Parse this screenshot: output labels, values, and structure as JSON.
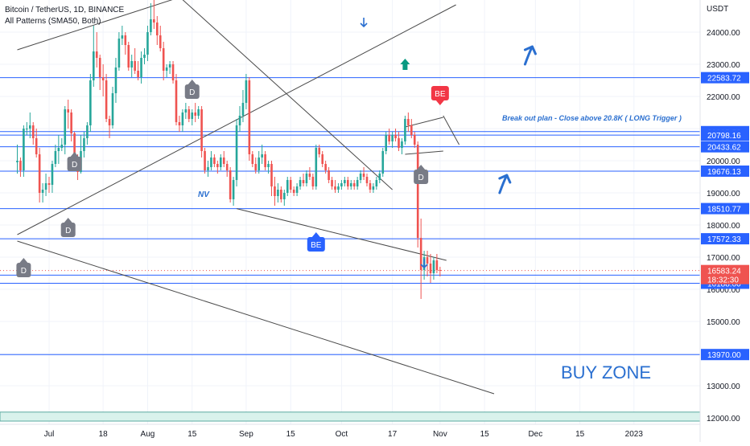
{
  "header": {
    "symbol_line": "Bitcoin / TetherUS, 1D, BINANCE",
    "indicator_line": "All Patterns (SMA50, Both)"
  },
  "axis": {
    "currency": "USDT",
    "y_ticks": [
      12000,
      13000,
      14000,
      15000,
      16000,
      17000,
      18000,
      19000,
      20000,
      21000,
      22000,
      23000,
      24000
    ],
    "y_tick_labels": [
      "12000.00",
      "13000.00",
      "14000.00",
      "15000.00",
      "16000.00",
      "17000.00",
      "18000.00",
      "19000.00",
      "20000.00",
      "21000.00",
      "22000.00",
      "23000.00",
      "24000.00"
    ],
    "ylim": [
      11800,
      25000
    ],
    "x_ticks": [
      {
        "label": "Jul",
        "day": 0
      },
      {
        "label": "18",
        "day": 17
      },
      {
        "label": "Aug",
        "day": 31
      },
      {
        "label": "15",
        "day": 45
      },
      {
        "label": "Sep",
        "day": 62
      },
      {
        "label": "15",
        "day": 76
      },
      {
        "label": "Oct",
        "day": 92
      },
      {
        "label": "17",
        "day": 108
      },
      {
        "label": "Nov",
        "day": 123
      },
      {
        "label": "15",
        "day": 137
      },
      {
        "label": "Dec",
        "day": 153
      },
      {
        "label": "15",
        "day": 167
      },
      {
        "label": "2023",
        "day": 184
      }
    ]
  },
  "levels": [
    {
      "price": 22583.72,
      "label": "22583.72"
    },
    {
      "price": 20905.58,
      "label": "20905.58"
    },
    {
      "price": 20798.16,
      "label": "20798.16"
    },
    {
      "price": 20433.62,
      "label": "20433.62"
    },
    {
      "price": 19676.13,
      "label": "19676.13"
    },
    {
      "price": 18510.77,
      "label": "18510.77"
    },
    {
      "price": 17572.33,
      "label": "17572.33"
    },
    {
      "price": 16441.53,
      "label": "16441.53"
    },
    {
      "price": 16188.0,
      "label": "16188.00"
    },
    {
      "price": 13970.0,
      "label": "13970.00"
    }
  ],
  "current": {
    "price": 16583.24,
    "label": "16583.24",
    "countdown": "18:32:30"
  },
  "colors": {
    "up": "#26a69a",
    "down": "#ef5350",
    "level": "#2962ff",
    "trend": "#4a4a4a",
    "annotation": "#2a6fd0",
    "pattern_tag": "#787b86",
    "be_down": "#f23645",
    "be_up": "#2962ff",
    "buy_zone_fill": "#d9f2ec"
  },
  "annotations": {
    "breakout_plan": "Break out plan - Close above 20.8K ( LONG Trigger )",
    "nv": "NV",
    "buy_zone": "BUY ZONE"
  },
  "buy_zone_band": [
    11900,
    12180
  ],
  "pattern_tags": [
    {
      "text": "D",
      "day": -8,
      "price": 16600,
      "dir": "up"
    },
    {
      "text": "D",
      "day": 8,
      "price": 19900,
      "dir": "up"
    },
    {
      "text": "D",
      "day": 45,
      "price": 22150,
      "dir": "up"
    },
    {
      "text": "D",
      "day": 6,
      "price": 17850,
      "dir": "up"
    },
    {
      "text": "D",
      "day": 117,
      "price": 19500,
      "dir": "up"
    },
    {
      "text": "BE",
      "day": 123,
      "price": 22100,
      "dir": "down"
    },
    {
      "text": "BE",
      "day": 84,
      "price": 17400,
      "dir": "up"
    }
  ],
  "arrows": [
    {
      "icon": "arrow-down-small",
      "day": 99,
      "price": 24300
    },
    {
      "icon": "arrow-up-solid",
      "day": 112,
      "price": 23000
    },
    {
      "icon": "arrow-up-right-big",
      "day": 151,
      "price": 23300
    },
    {
      "icon": "arrow-up-right-big",
      "day": 143,
      "price": 19300
    },
    {
      "icon": "arrow-down-small",
      "day": 118,
      "price": 16800
    }
  ],
  "trendlines": [
    {
      "x1": -10,
      "y1": 23450,
      "x2": 40,
      "y2": 25050
    },
    {
      "x1": -10,
      "y1": 17700,
      "x2": 128,
      "y2": 24850
    },
    {
      "x1": 41,
      "y1": 25100,
      "x2": 108,
      "y2": 19100
    },
    {
      "x1": -10,
      "y1": 17500,
      "x2": 140,
      "y2": 12750
    },
    {
      "x1": 59,
      "y1": 18510,
      "x2": 125,
      "y2": 16900
    },
    {
      "x1": 112,
      "y1": 20200,
      "x2": 124,
      "y2": 20300
    },
    {
      "x1": 112,
      "y1": 21050,
      "x2": 124,
      "y2": 21350
    },
    {
      "x1": 124,
      "y1": 21400,
      "x2": 129,
      "y2": 20500
    }
  ],
  "chart_data": {
    "type": "candlestick",
    "title": "Bitcoin / TetherUS, 1D, BINANCE",
    "ylabel": "USDT",
    "ylim": [
      11800,
      25000
    ],
    "x_start": "2022-06-21",
    "candles": [
      [
        19950,
        20500,
        19600,
        20000
      ],
      [
        20000,
        20100,
        19500,
        19700
      ],
      [
        19700,
        21100,
        19500,
        21000
      ],
      [
        21000,
        21200,
        20800,
        21000
      ],
      [
        21000,
        21500,
        20700,
        21100
      ],
      [
        21100,
        21200,
        20500,
        20700
      ],
      [
        20700,
        21000,
        20100,
        20200
      ],
      [
        20200,
        20400,
        18700,
        19000
      ],
      [
        19000,
        19300,
        18700,
        19100
      ],
      [
        19100,
        19600,
        18900,
        19300
      ],
      [
        19300,
        19500,
        19000,
        19250
      ],
      [
        19250,
        20000,
        19000,
        19900
      ],
      [
        19900,
        20500,
        19800,
        20300
      ],
      [
        20300,
        20800,
        19900,
        20400
      ],
      [
        20400,
        20700,
        20300,
        20500
      ],
      [
        20500,
        21700,
        20200,
        21600
      ],
      [
        21600,
        21900,
        21000,
        21500
      ],
      [
        21500,
        21600,
        20600,
        20850
      ],
      [
        20850,
        20900,
        20000,
        20100
      ],
      [
        20100,
        20200,
        19400,
        19650
      ],
      [
        19650,
        20800,
        19600,
        20300
      ],
      [
        20300,
        20900,
        20100,
        20700
      ],
      [
        20700,
        21200,
        20500,
        21100
      ],
      [
        21100,
        22700,
        20900,
        22500
      ],
      [
        22500,
        24200,
        22300,
        23400
      ],
      [
        23400,
        24000,
        22900,
        23200
      ],
      [
        23200,
        23300,
        22200,
        22600
      ],
      [
        22600,
        23000,
        22000,
        22500
      ],
      [
        22500,
        22700,
        21200,
        21300
      ],
      [
        21300,
        21400,
        20700,
        21100
      ],
      [
        21100,
        22300,
        21000,
        22100
      ],
      [
        22100,
        23200,
        21800,
        22900
      ],
      [
        22900,
        24000,
        22800,
        23800
      ],
      [
        23800,
        24200,
        23600,
        23900
      ],
      [
        23900,
        24000,
        23300,
        23600
      ],
      [
        23600,
        23700,
        22800,
        22900
      ],
      [
        22900,
        23300,
        22600,
        23100
      ],
      [
        23100,
        23500,
        22700,
        22800
      ],
      [
        22800,
        23100,
        22500,
        22600
      ],
      [
        22600,
        23400,
        22400,
        23200
      ],
      [
        23200,
        23500,
        23000,
        23300
      ],
      [
        23300,
        24200,
        23100,
        24000
      ],
      [
        24000,
        24900,
        23900,
        24400
      ],
      [
        24400,
        25100,
        24100,
        24300
      ],
      [
        24300,
        24500,
        23600,
        23900
      ],
      [
        23900,
        24200,
        23400,
        23500
      ],
      [
        23500,
        23700,
        22500,
        22800
      ],
      [
        22800,
        23000,
        22600,
        22900
      ],
      [
        22900,
        23100,
        22700,
        23000
      ],
      [
        23000,
        23100,
        22400,
        22500
      ],
      [
        22500,
        22700,
        21100,
        21200
      ],
      [
        21200,
        21400,
        20900,
        21100
      ],
      [
        21100,
        21600,
        20900,
        21500
      ],
      [
        21500,
        21800,
        21300,
        21600
      ],
      [
        21600,
        21700,
        21200,
        21300
      ],
      [
        21300,
        21600,
        21100,
        21500
      ],
      [
        21500,
        21800,
        21200,
        21400
      ],
      [
        21400,
        21700,
        21300,
        21600
      ],
      [
        21600,
        21700,
        20100,
        20300
      ],
      [
        20300,
        20400,
        19600,
        19700
      ],
      [
        19700,
        20000,
        19500,
        19800
      ],
      [
        19800,
        20300,
        19700,
        20100
      ],
      [
        20100,
        20200,
        19800,
        19900
      ],
      [
        19900,
        20000,
        19600,
        19800
      ],
      [
        19800,
        20200,
        19700,
        20100
      ],
      [
        20100,
        20300,
        19800,
        19900
      ],
      [
        19900,
        20000,
        19500,
        19700
      ],
      [
        19700,
        19800,
        18700,
        18800
      ],
      [
        18800,
        19500,
        18600,
        19400
      ],
      [
        19400,
        21300,
        19200,
        21100
      ],
      [
        21100,
        21700,
        20900,
        21400
      ],
      [
        21400,
        22200,
        21200,
        21800
      ],
      [
        21800,
        22700,
        21600,
        22500
      ],
      [
        22500,
        22600,
        20000,
        20200
      ],
      [
        20200,
        20300,
        19800,
        19900
      ],
      [
        19900,
        20100,
        19600,
        19700
      ],
      [
        19700,
        20300,
        19600,
        20100
      ],
      [
        20100,
        20500,
        19900,
        20200
      ],
      [
        20200,
        20300,
        19700,
        19800
      ],
      [
        19800,
        20000,
        19600,
        19900
      ],
      [
        19900,
        20000,
        18900,
        19200
      ],
      [
        19200,
        19500,
        18600,
        18900
      ],
      [
        18900,
        19300,
        18700,
        19100
      ],
      [
        19100,
        19200,
        18700,
        18800
      ],
      [
        18800,
        19100,
        18600,
        19000
      ],
      [
        19000,
        19500,
        18900,
        19400
      ],
      [
        19400,
        19500,
        19000,
        19100
      ],
      [
        19100,
        19200,
        18900,
        19000
      ],
      [
        19000,
        19300,
        18900,
        19200
      ],
      [
        19200,
        19500,
        19100,
        19400
      ],
      [
        19400,
        19600,
        19200,
        19300
      ],
      [
        19300,
        19700,
        19200,
        19600
      ],
      [
        19600,
        19800,
        19400,
        19500
      ],
      [
        19500,
        19600,
        19100,
        19200
      ],
      [
        19200,
        20500,
        19100,
        20400
      ],
      [
        20400,
        20500,
        20100,
        20200
      ],
      [
        20200,
        20300,
        19800,
        19900
      ],
      [
        19900,
        20000,
        19600,
        19700
      ],
      [
        19700,
        19800,
        19300,
        19400
      ],
      [
        19400,
        19500,
        19100,
        19200
      ],
      [
        19200,
        19400,
        19000,
        19100
      ],
      [
        19100,
        19300,
        19000,
        19200
      ],
      [
        19200,
        19400,
        19100,
        19300
      ],
      [
        19300,
        19500,
        19200,
        19400
      ],
      [
        19400,
        19500,
        19100,
        19200
      ],
      [
        19200,
        19400,
        19100,
        19300
      ],
      [
        19300,
        19400,
        19100,
        19200
      ],
      [
        19200,
        19500,
        19100,
        19400
      ],
      [
        19400,
        19700,
        19300,
        19600
      ],
      [
        19600,
        19800,
        19400,
        19500
      ],
      [
        19500,
        19600,
        19200,
        19300
      ],
      [
        19300,
        19400,
        19000,
        19100
      ],
      [
        19100,
        19300,
        19000,
        19200
      ],
      [
        19200,
        19500,
        19100,
        19400
      ],
      [
        19400,
        19700,
        19300,
        19600
      ],
      [
        19600,
        20400,
        19500,
        20300
      ],
      [
        20300,
        20900,
        20200,
        20800
      ],
      [
        20800,
        21000,
        20500,
        20600
      ],
      [
        20600,
        20900,
        20400,
        20800
      ],
      [
        20800,
        21000,
        20600,
        20700
      ],
      [
        20700,
        20900,
        20300,
        20400
      ],
      [
        20400,
        20700,
        20200,
        20600
      ],
      [
        20600,
        21400,
        20500,
        21300
      ],
      [
        21300,
        21500,
        20900,
        21100
      ],
      [
        21100,
        21300,
        20700,
        20800
      ],
      [
        20800,
        20900,
        20400,
        20500
      ],
      [
        20500,
        20600,
        17300,
        17600
      ],
      [
        17600,
        18200,
        15700,
        16600
      ],
      [
        16600,
        17200,
        16300,
        17000
      ],
      [
        17000,
        17200,
        16400,
        16800
      ],
      [
        16800,
        17100,
        16200,
        16500
      ],
      [
        16500,
        17000,
        16300,
        16900
      ],
      [
        16900,
        17100,
        16500,
        16600
      ],
      [
        16600,
        16700,
        16400,
        16583
      ]
    ]
  }
}
